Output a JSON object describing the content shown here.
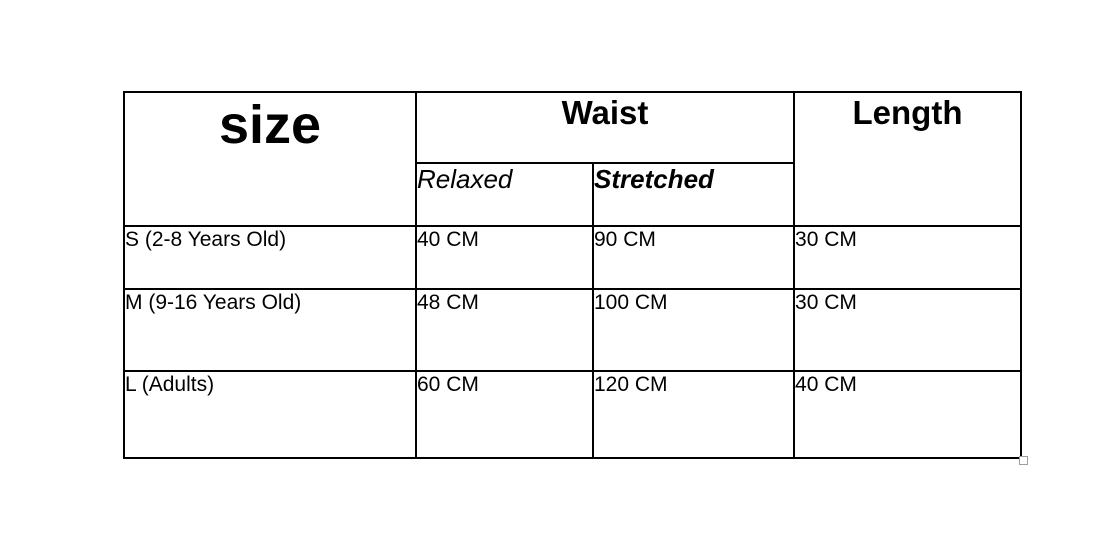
{
  "size_chart": {
    "header": {
      "size_label": "size",
      "waist_label": "Waist",
      "length_label": "Length",
      "relaxed_label": "Relaxed",
      "stretched_label": "Stretched"
    },
    "rows": [
      {
        "size": "S (2-8 Years Old)",
        "waist_relaxed": "40 CM",
        "waist_stretched": "90 CM",
        "length": "30 CM"
      },
      {
        "size": "M (9-16 Years Old)",
        "waist_relaxed": "48 CM",
        "waist_stretched": "100 CM",
        "length": "30 CM"
      },
      {
        "size": "L (Adults)",
        "waist_relaxed": "60 CM",
        "waist_stretched": "120 CM",
        "length": "40 CM"
      }
    ],
    "colors": {
      "border": "#000000",
      "text": "#000000",
      "background": "#ffffff",
      "resize_handle_border": "#9d9d9d"
    }
  }
}
